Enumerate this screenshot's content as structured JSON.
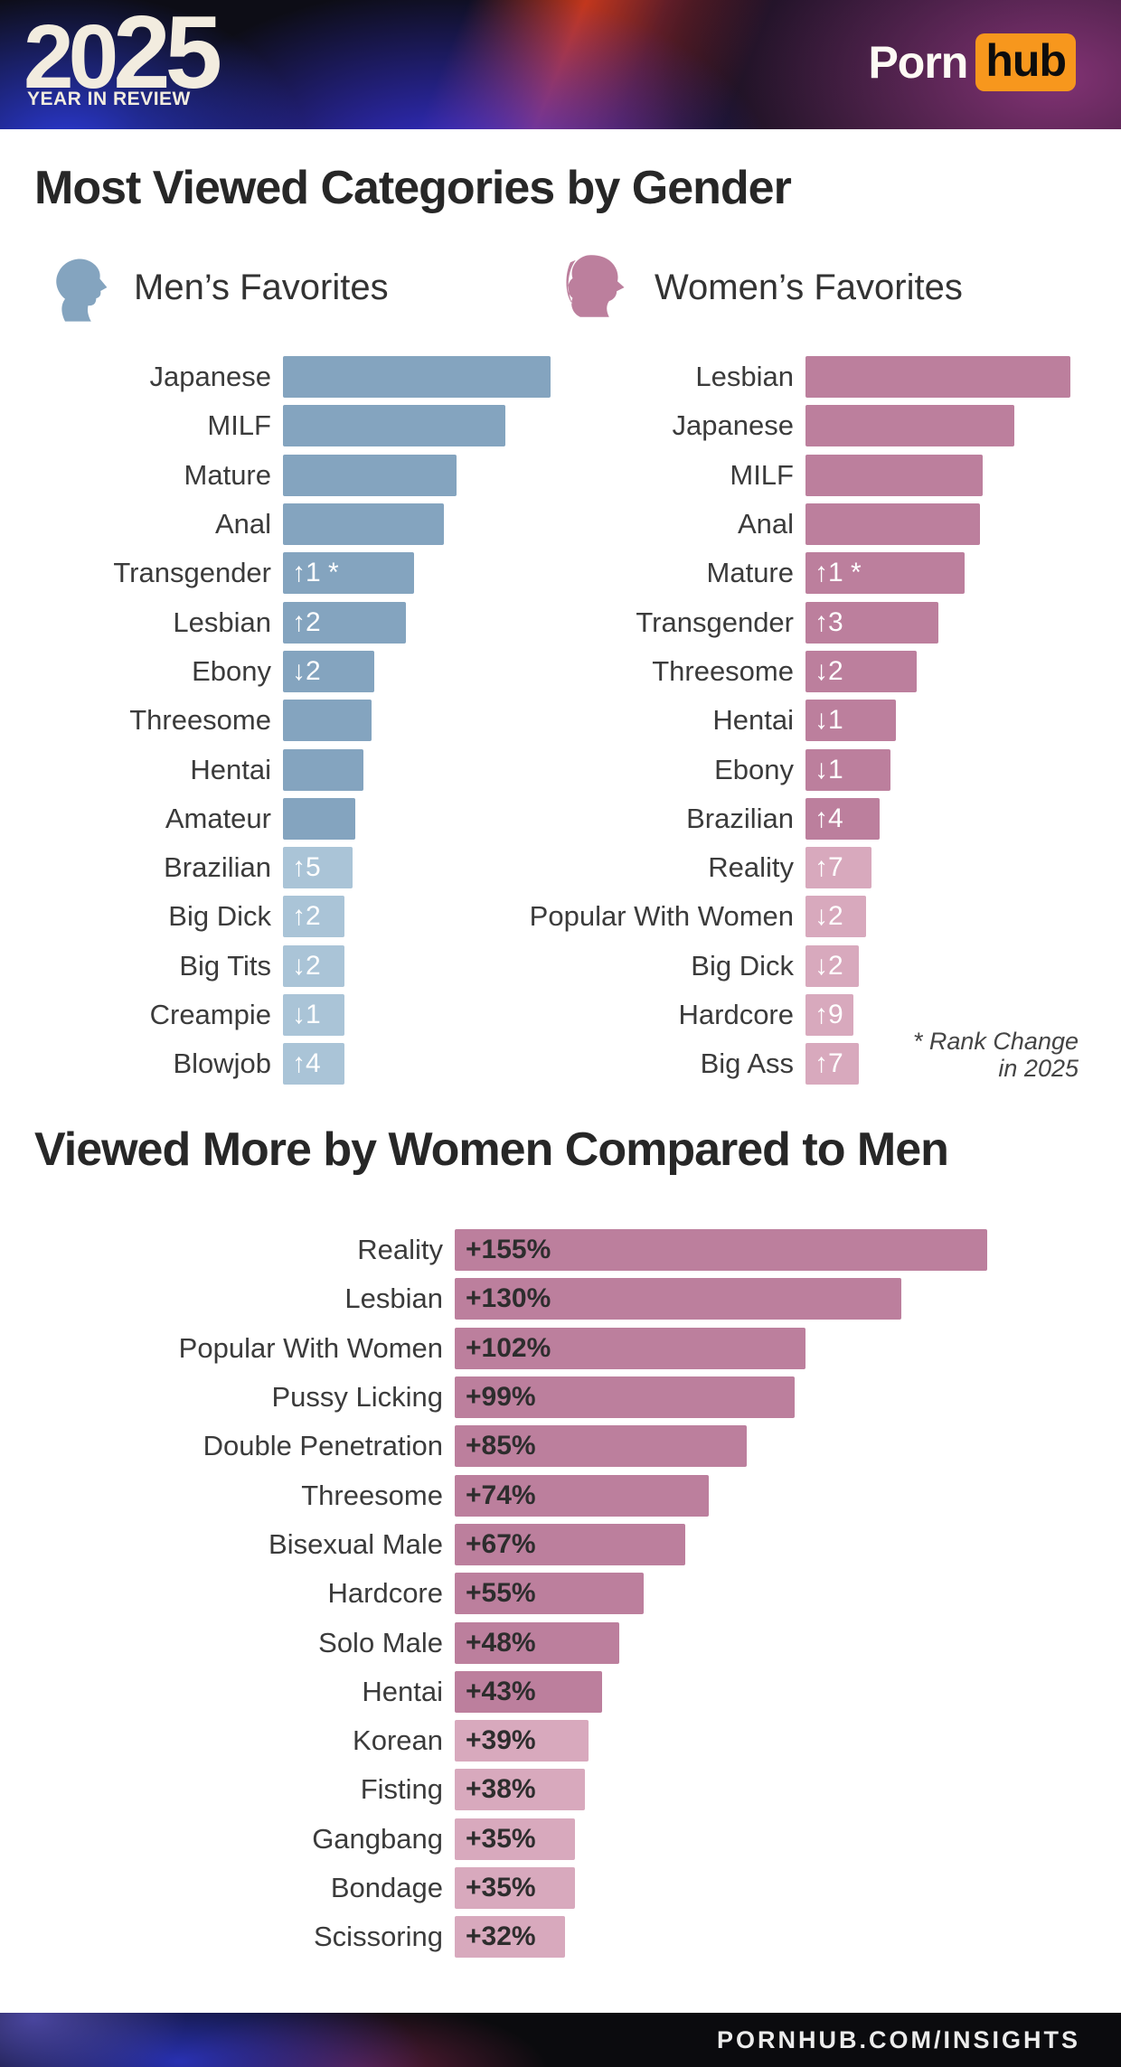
{
  "header": {
    "logo_year_first": "20",
    "logo_year_second": "25",
    "logo_subtitle": "YEAR IN REVIEW",
    "brand_left": "Porn",
    "brand_right": "hub",
    "brand_accent_color": "#f7971d"
  },
  "section1": {
    "title": "Most Viewed Categories by Gender",
    "men_heading": "Men’s Favorites",
    "women_heading": "Women’s Favorites",
    "footnote_line1": "* Rank Change",
    "footnote_line2": "in 2025"
  },
  "section2": {
    "title": "Viewed More by Women Compared to Men"
  },
  "footer": {
    "url": "PORNHUB.COM/INSIGHTS"
  },
  "colors": {
    "men_bar": "#84a4bf",
    "men_bar_light": "#aac4d7",
    "women_bar": "#bc7f9d",
    "women_bar_light": "#d8a9bd",
    "title_text": "#272727",
    "label_text": "#3b3b3b"
  },
  "chart_data": [
    {
      "id": "men_favorites",
      "type": "bar",
      "orientation": "horizontal",
      "title": "Men's Favorites",
      "note": "no numeric axis shown; values are relative bar lengths in % of longest bar",
      "bar_color": "#84a4bf",
      "bar_color_light": "#aac4d7",
      "light_from_index": 10,
      "categories": [
        "Japanese",
        "MILF",
        "Mature",
        "Anal",
        "Transgender",
        "Lesbian",
        "Ebony",
        "Threesome",
        "Hentai",
        "Amateur",
        "Brazilian",
        "Big Dick",
        "Big Tits",
        "Creampie",
        "Blowjob"
      ],
      "values": [
        100,
        83,
        65,
        60,
        49,
        46,
        34,
        33,
        30,
        27,
        26,
        23,
        23,
        23,
        23
      ],
      "badges": [
        "",
        "",
        "",
        "",
        "↑1 *",
        "↑2",
        "↓2",
        "",
        "",
        "",
        "↑5",
        "↑2",
        "↓2",
        "↓1",
        "↑4"
      ]
    },
    {
      "id": "women_favorites",
      "type": "bar",
      "orientation": "horizontal",
      "title": "Women's Favorites",
      "note": "no numeric axis shown; values are relative bar lengths in % of longest bar",
      "bar_color": "#bc7f9d",
      "bar_color_light": "#d8a9bd",
      "light_from_index": 10,
      "categories": [
        "Lesbian",
        "Japanese",
        "MILF",
        "Anal",
        "Mature",
        "Transgender",
        "Threesome",
        "Hentai",
        "Ebony",
        "Brazilian",
        "Reality",
        "Popular With Women",
        "Big Dick",
        "Hardcore",
        "Big Ass"
      ],
      "values": [
        100,
        79,
        67,
        66,
        60,
        50,
        42,
        34,
        32,
        28,
        25,
        23,
        20,
        18,
        20
      ],
      "badges": [
        "",
        "",
        "",
        "",
        "↑1 *",
        "↑3",
        "↓2",
        "↓1",
        "↓1",
        "↑4",
        "↑7",
        "↓2",
        "↓2",
        "↑9",
        "↑7"
      ]
    },
    {
      "id": "viewed_more_by_women",
      "type": "bar",
      "orientation": "horizontal",
      "title": "Viewed More by Women Compared to Men",
      "xlabel": "",
      "ylabel": "",
      "xlim": [
        0,
        155
      ],
      "bar_color": "#bc7f9d",
      "bar_color_light": "#d8a9bd",
      "light_from_index": 10,
      "categories": [
        "Reality",
        "Lesbian",
        "Popular With Women",
        "Pussy Licking",
        "Double Penetration",
        "Threesome",
        "Bisexual Male",
        "Hardcore",
        "Solo Male",
        "Hentai",
        "Korean",
        "Fisting",
        "Gangbang",
        "Bondage",
        "Scissoring"
      ],
      "values": [
        155,
        130,
        102,
        99,
        85,
        74,
        67,
        55,
        48,
        43,
        39,
        38,
        35,
        35,
        32
      ],
      "value_labels": [
        "+155%",
        "+130%",
        "+102%",
        "+99%",
        "+85%",
        "+74%",
        "+67%",
        "+55%",
        "+48%",
        "+43%",
        "+39%",
        "+38%",
        "+35%",
        "+35%",
        "+32%"
      ]
    }
  ]
}
